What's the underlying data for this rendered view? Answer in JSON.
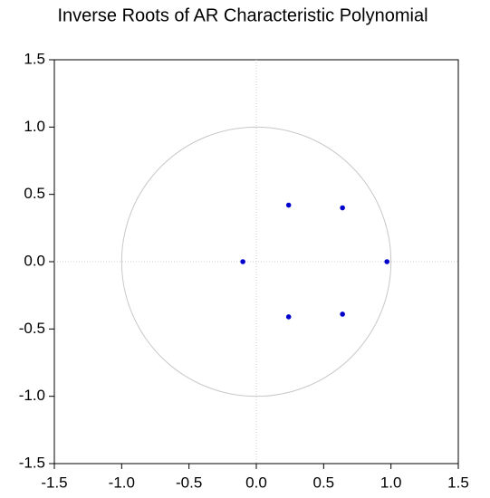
{
  "chart_data": {
    "type": "scatter",
    "title": "Inverse Roots of AR Characteristic Polynomial",
    "x": [
      -0.1,
      0.24,
      0.64,
      0.97,
      0.24,
      0.64
    ],
    "series": [
      {
        "color": "#0000cc",
        "values": [
          0.0,
          0.42,
          0.4,
          0.0,
          -0.41,
          -0.39
        ]
      }
    ],
    "xlim": [
      -1.5,
      1.5
    ],
    "ylim": [
      -1.5,
      1.5
    ],
    "xticks": [
      -1.5,
      {
        "value": -1.0,
        "label": "-1.0"
      },
      -0.5,
      {
        "value": 0.0,
        "label": "0.0"
      },
      0.5,
      {
        "value": 1.0,
        "label": "1.0"
      },
      1.5
    ],
    "yticks": [
      -1.5,
      {
        "value": -1.0,
        "label": "-1.0"
      },
      -0.5,
      {
        "value": 0.0,
        "label": "0.0"
      },
      0.5,
      {
        "value": 1.0,
        "label": "1.0"
      },
      1.5
    ],
    "unit_circle": true,
    "zero_lines": true
  }
}
